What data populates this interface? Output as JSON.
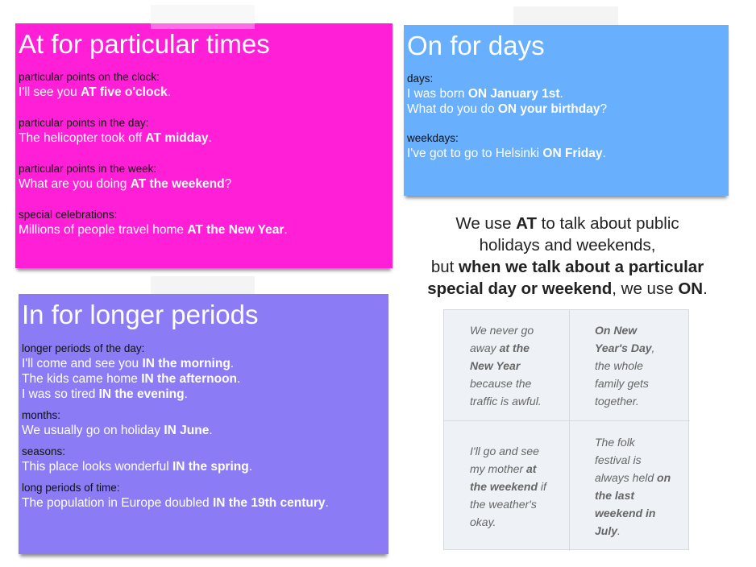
{
  "cards": {
    "at": {
      "title": "At for particular times",
      "color": "#ff1fd6",
      "sections": [
        {
          "label": "particular points on the clock:",
          "lines": [
            [
              {
                "t": "I'll see you "
              },
              {
                "t": "AT five o'clock",
                "b": true
              },
              {
                "t": "."
              }
            ]
          ]
        },
        {
          "label": "particular points in the day:",
          "lines": [
            [
              {
                "t": "The helicopter took off "
              },
              {
                "t": "AT midday",
                "b": true
              },
              {
                "t": "."
              }
            ]
          ]
        },
        {
          "label": "particular points in the week:",
          "lines": [
            [
              {
                "t": "What are you doing "
              },
              {
                "t": "AT the weekend",
                "b": true
              },
              {
                "t": "?"
              }
            ]
          ]
        },
        {
          "label": "special celebrations:",
          "lines": [
            [
              {
                "t": "Millions of people travel home "
              },
              {
                "t": "AT the New Year",
                "b": true
              },
              {
                "t": "."
              }
            ]
          ]
        }
      ]
    },
    "on": {
      "title": "On for days",
      "color": "#68affe",
      "sections": [
        {
          "label": "days:",
          "lines": [
            [
              {
                "t": "I was born "
              },
              {
                "t": "ON January 1st",
                "b": true
              },
              {
                "t": "."
              }
            ],
            [
              {
                "t": "What do you do "
              },
              {
                "t": "ON your birthday",
                "b": true
              },
              {
                "t": "?"
              }
            ]
          ]
        },
        {
          "label": "weekdays:",
          "lines": [
            [
              {
                "t": "I've got to go to Helsinki "
              },
              {
                "t": "ON Friday",
                "b": true
              },
              {
                "t": "."
              }
            ]
          ]
        }
      ]
    },
    "in": {
      "title": "In for longer periods",
      "color": "#8b7cf5",
      "sections": [
        {
          "label": "longer periods of the day:",
          "lines": [
            [
              {
                "t": "I'll come and see you "
              },
              {
                "t": "IN the morning",
                "b": true
              },
              {
                "t": "."
              }
            ],
            [
              {
                "t": "The kids came home "
              },
              {
                "t": "IN the afternoon",
                "b": true
              },
              {
                "t": "."
              }
            ],
            [
              {
                "t": "I was so tired "
              },
              {
                "t": "IN the evening",
                "b": true
              },
              {
                "t": "."
              }
            ]
          ]
        },
        {
          "label": "months:",
          "lines": [
            [
              {
                "t": "We usually go on holiday "
              },
              {
                "t": "IN June",
                "b": true
              },
              {
                "t": "."
              }
            ]
          ]
        },
        {
          "label": "seasons:",
          "lines": [
            [
              {
                "t": "This place looks wonderful "
              },
              {
                "t": "IN the spring",
                "b": true
              },
              {
                "t": "."
              }
            ]
          ]
        },
        {
          "label": "long periods of time:",
          "lines": [
            [
              {
                "t": "The population in Europe doubled "
              },
              {
                "t": "IN the 19th century",
                "b": true
              },
              {
                "t": "."
              }
            ]
          ]
        }
      ]
    }
  },
  "note": {
    "lines": [
      [
        {
          "t": "We use "
        },
        {
          "t": "AT",
          "b": true
        },
        {
          "t": " to talk about public"
        }
      ],
      [
        {
          "t": "holidays and weekends,"
        }
      ],
      [
        {
          "t": "but "
        },
        {
          "t": "when we talk about a particular",
          "b": true
        }
      ],
      [
        {
          "t": "special day or weekend",
          "b": true
        },
        {
          "t": ", we use "
        },
        {
          "t": "ON",
          "b": true
        },
        {
          "t": "."
        }
      ]
    ]
  },
  "examples": [
    {
      "lines": [
        [
          {
            "t": "We never go"
          }
        ],
        [
          {
            "t": "away "
          },
          {
            "t": "at the",
            "b": true
          }
        ],
        [
          {
            "t": "New Year",
            "b": true
          }
        ],
        [
          {
            "t": "because the"
          }
        ],
        [
          {
            "t": "traffic is awful."
          }
        ]
      ]
    },
    {
      "lines": [
        [
          {
            "t": "On New",
            "b": true
          }
        ],
        [
          {
            "t": "Year's Day",
            "b": true
          },
          {
            "t": ","
          }
        ],
        [
          {
            "t": "the whole"
          }
        ],
        [
          {
            "t": "family gets"
          }
        ],
        [
          {
            "t": "together."
          }
        ]
      ]
    },
    {
      "lines": [
        [
          {
            "t": "I'll go and see"
          }
        ],
        [
          {
            "t": "my mother "
          },
          {
            "t": "at",
            "b": true
          }
        ],
        [
          {
            "t": "the weekend",
            "b": true
          },
          {
            "t": " if"
          }
        ],
        [
          {
            "t": "the weather's"
          }
        ],
        [
          {
            "t": "okay."
          }
        ]
      ]
    },
    {
      "lines": [
        [
          {
            "t": "The folk"
          }
        ],
        [
          {
            "t": "festival is"
          }
        ],
        [
          {
            "t": "always held "
          },
          {
            "t": "on",
            "b": true
          }
        ],
        [
          {
            "t": "the last",
            "b": true
          }
        ],
        [
          {
            "t": "weekend in",
            "b": true
          }
        ],
        [
          {
            "t": "July",
            "b": true
          },
          {
            "t": "."
          }
        ]
      ]
    }
  ]
}
